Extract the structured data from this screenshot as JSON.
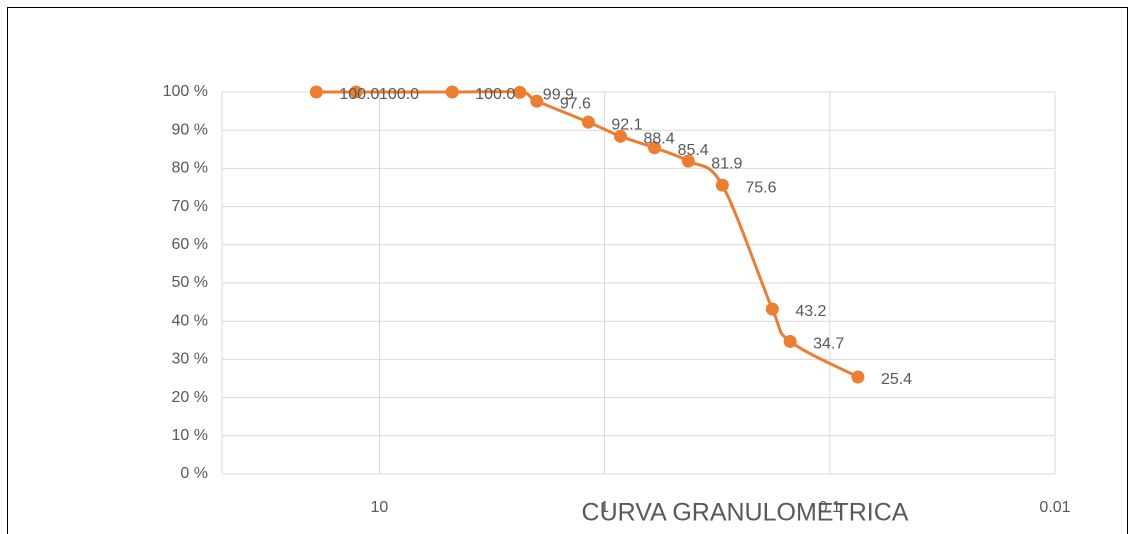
{
  "chart_data": {
    "type": "line",
    "title": "CURVA GRANULOMETRICA",
    "x": [
      19.05,
      12.7,
      4.75,
      2.38,
      2.0,
      1.18,
      0.85,
      0.6,
      0.425,
      0.3,
      0.18,
      0.15,
      0.075
    ],
    "series": [
      {
        "color": "#ED7D31",
        "values": [
          100,
          100,
          100,
          99.9,
          97.6,
          92.1,
          88.4,
          85.4,
          81.9,
          75.6,
          43.2,
          34.7,
          25.4
        ],
        "value_labels": [
          "100.0",
          "100.0",
          "100.0",
          "99.9",
          "97.6",
          "92.1",
          "88.4",
          "85.4",
          "81.9",
          "75.6",
          "43.2",
          "34.7",
          "25.4"
        ]
      }
    ],
    "xlim": [
      50,
      0.01
    ],
    "xticks": [
      10,
      1,
      0.1,
      0.01
    ],
    "xscale": "log",
    "ylim": [
      0,
      100
    ],
    "yticks": [
      {
        "value": 0,
        "label": "0 %"
      },
      {
        "value": 10,
        "label": "10 %"
      },
      {
        "value": 20,
        "label": "20 %"
      },
      {
        "value": 30,
        "label": "30 %"
      },
      {
        "value": 40,
        "label": "40 %"
      },
      {
        "value": 50,
        "label": "50 %"
      },
      {
        "value": 60,
        "label": "60 %"
      },
      {
        "value": 70,
        "label": "70 %"
      },
      {
        "value": 80,
        "label": "80 %"
      },
      {
        "value": 90,
        "label": "90 %"
      },
      {
        "value": 100,
        "label": "100 %"
      }
    ],
    "grid": true,
    "smooth": true
  }
}
